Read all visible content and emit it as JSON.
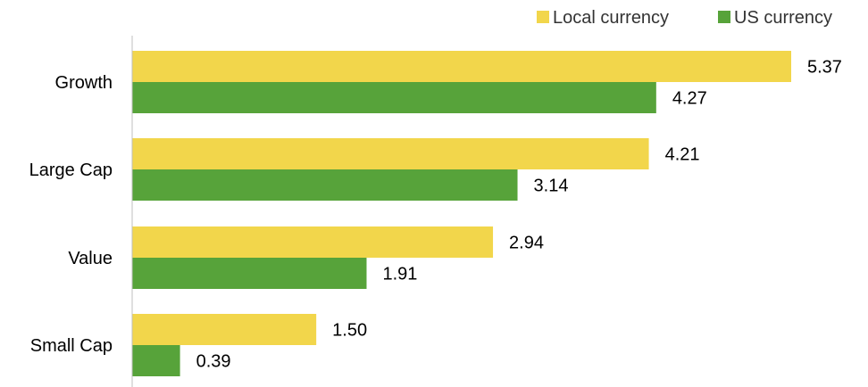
{
  "chart_data": {
    "type": "bar",
    "orientation": "horizontal",
    "categories": [
      "Growth",
      "Large Cap",
      "Value",
      "Small Cap"
    ],
    "series": [
      {
        "name": "Local currency",
        "color": "#f2d64b",
        "values": [
          5.37,
          4.21,
          2.94,
          1.5
        ]
      },
      {
        "name": "US currency",
        "color": "#57a33a",
        "values": [
          4.27,
          3.14,
          1.91,
          0.39
        ]
      }
    ],
    "value_labels": [
      [
        "5.37",
        "4.21",
        "2.94",
        "1.50"
      ],
      [
        "4.27",
        "3.14",
        "1.91",
        "0.39"
      ]
    ],
    "title": "",
    "xlabel": "",
    "ylabel": "",
    "xlim": [
      0,
      5.37
    ],
    "grid": false,
    "legend": "top-right"
  }
}
